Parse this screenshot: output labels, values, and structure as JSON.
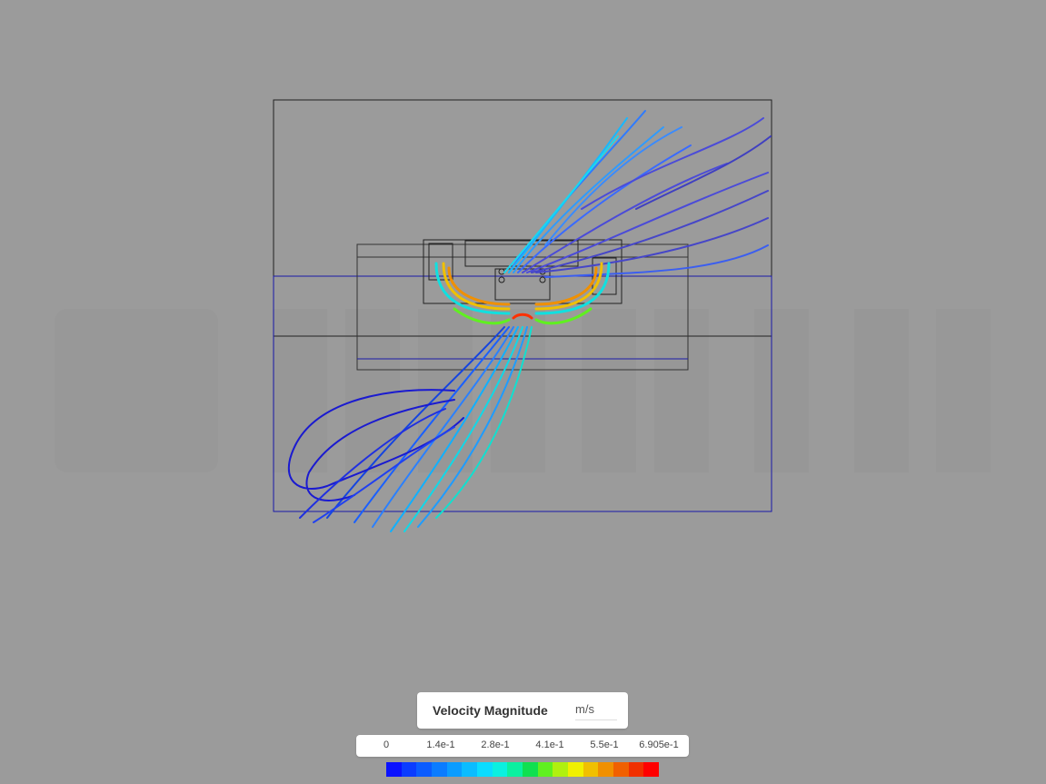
{
  "legend": {
    "title": "Velocity Magnitude",
    "unit": "m/s",
    "ticks": [
      "0",
      "1.4e-1",
      "2.8e-1",
      "4.1e-1",
      "5.5e-1",
      "6.905e-1"
    ]
  },
  "colorbar_colors": [
    "#0a12ff",
    "#0a3cff",
    "#0a5cff",
    "#0a7cff",
    "#0a9cff",
    "#0abcff",
    "#0adcff",
    "#0af0e0",
    "#0af0a0",
    "#10e050",
    "#60f020",
    "#b0f010",
    "#f0f000",
    "#f0c000",
    "#f09000",
    "#f06000",
    "#f03000",
    "#ff0000"
  ]
}
